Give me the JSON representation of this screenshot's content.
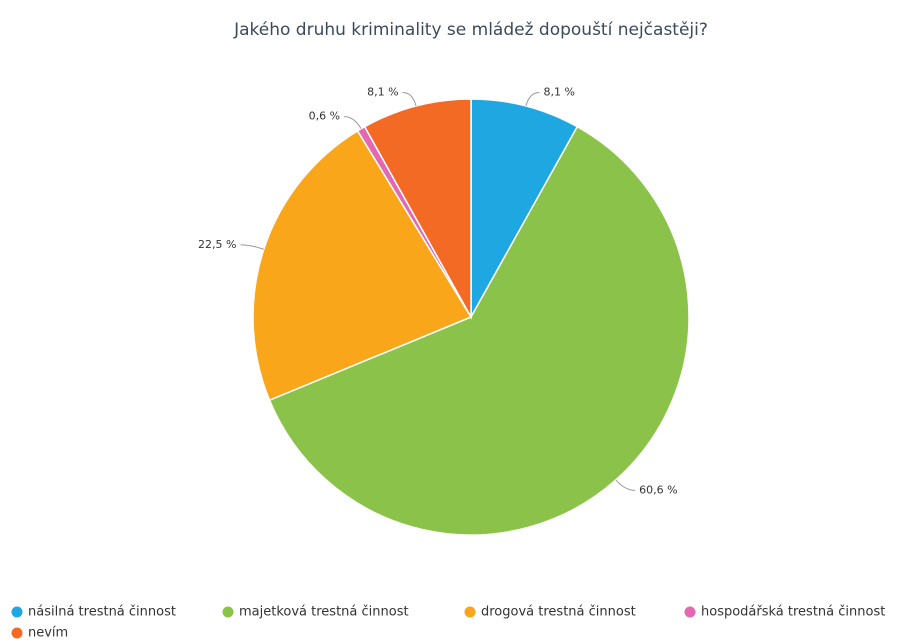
{
  "chart_data": {
    "type": "pie",
    "title": "Jakého druhu kriminality se mládež dopouští nejčastěji?",
    "categories": [
      "násilná trestná činnost",
      "majetková trestná činnost",
      "drogová trestná činnost",
      "hospodářská trestná činnost",
      "nevím"
    ],
    "values": [
      8.1,
      60.6,
      22.5,
      0.6,
      8.1
    ],
    "value_labels": [
      "8,1 %",
      "60,6 %",
      "22,5 %",
      "0,6 %",
      "8,1 %"
    ],
    "colors": [
      "#1ea7e1",
      "#8bc34a",
      "#faa61a",
      "#e468b1",
      "#f26a24"
    ],
    "legend": "bottom"
  }
}
